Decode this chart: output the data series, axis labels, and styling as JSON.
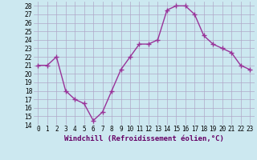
{
  "hours": [
    0,
    1,
    2,
    3,
    4,
    5,
    6,
    7,
    8,
    9,
    10,
    11,
    12,
    13,
    14,
    15,
    16,
    17,
    18,
    19,
    20,
    21,
    22,
    23
  ],
  "values": [
    21,
    21,
    22,
    18,
    17,
    16.5,
    14.5,
    15.5,
    18,
    20.5,
    22,
    23.5,
    23.5,
    24,
    27.5,
    28,
    28,
    27,
    24.5,
    23.5,
    23,
    22.5,
    21,
    20.5
  ],
  "line_color": "#993399",
  "marker": "+",
  "bg_color": "#cce8f0",
  "grid_color": "#b0a8c8",
  "xlabel": "Windchill (Refroidissement éolien,°C)",
  "ylim": [
    14,
    28.5
  ],
  "xlim": [
    -0.5,
    23.5
  ],
  "yticks": [
    14,
    15,
    16,
    17,
    18,
    19,
    20,
    21,
    22,
    23,
    24,
    25,
    26,
    27,
    28
  ],
  "xtick_labels": [
    "0",
    "1",
    "2",
    "3",
    "4",
    "5",
    "6",
    "7",
    "8",
    "9",
    "10",
    "11",
    "12",
    "13",
    "14",
    "15",
    "16",
    "17",
    "18",
    "19",
    "20",
    "21",
    "22",
    "23"
  ],
  "label_fontsize": 6.5,
  "tick_fontsize": 5.5,
  "line_width": 1.0,
  "marker_size": 4
}
